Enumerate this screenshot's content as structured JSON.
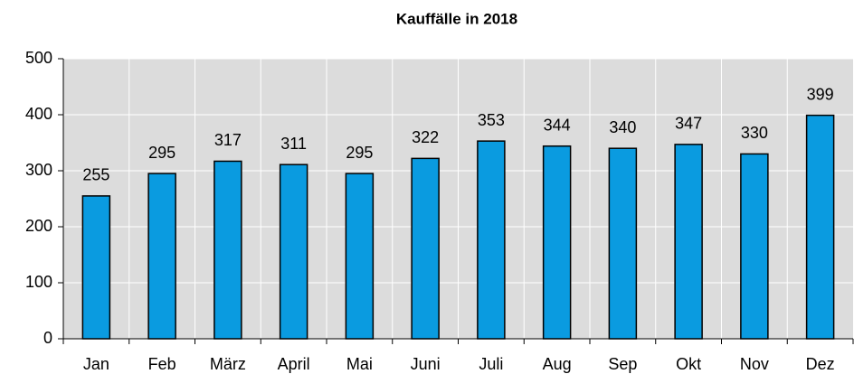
{
  "chart_data": {
    "type": "bar",
    "title": "Kauffälle in 2018",
    "categories": [
      "Jan",
      "Feb",
      "März",
      "April",
      "Mai",
      "Juni",
      "Juli",
      "Aug",
      "Sep",
      "Okt",
      "Nov",
      "Dez"
    ],
    "values": [
      255,
      295,
      317,
      311,
      295,
      322,
      353,
      344,
      340,
      347,
      330,
      399
    ],
    "color": "#0a9be0",
    "ylim": [
      0,
      500
    ],
    "yticks": [
      0,
      100,
      200,
      300,
      400,
      500
    ],
    "grid": true
  }
}
